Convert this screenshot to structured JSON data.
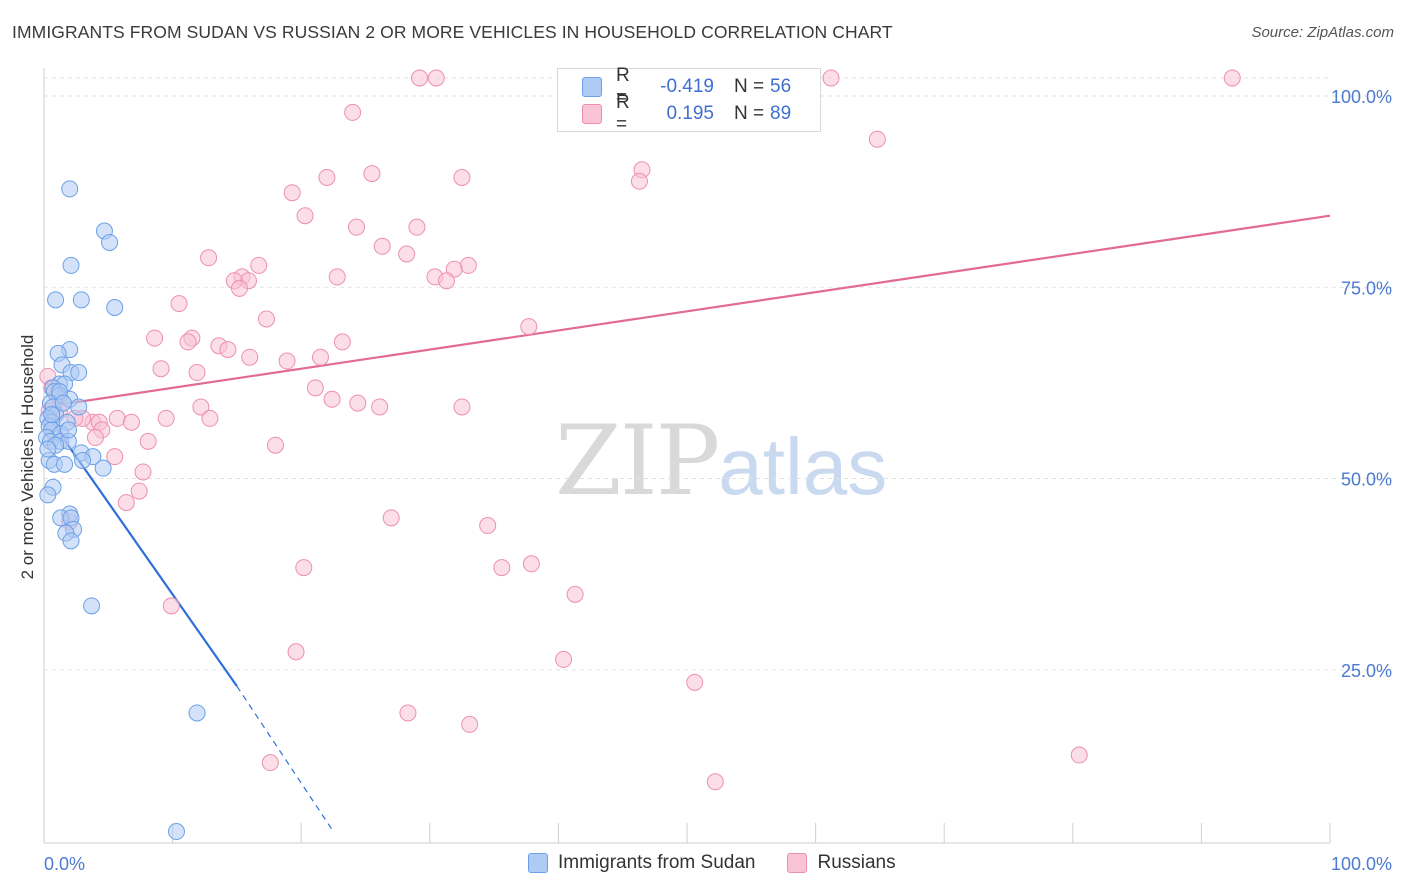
{
  "title": "IMMIGRANTS FROM SUDAN VS RUSSIAN 2 OR MORE VEHICLES IN HOUSEHOLD CORRELATION CHART",
  "source": "Source: ZipAtlas.com",
  "watermark": {
    "zip": "ZIP",
    "atlas": "atlas"
  },
  "colors": {
    "blue": "#6aa0e8",
    "blue_fill": "#aecbf3",
    "blue_line": "#2f6fd8",
    "pink": "#ee8fb0",
    "pink_fill": "#f8c3d5",
    "pink_line": "#e36a96",
    "tick_text": "#4a7bd0"
  },
  "stats": [
    {
      "r_label": "R =",
      "r_value": "-0.419",
      "n_label": "N =",
      "n_value": "56"
    },
    {
      "r_label": "R =",
      "r_value": "0.195",
      "n_label": "N =",
      "n_value": "89"
    }
  ],
  "legend": [
    {
      "label": "Immigrants from Sudan"
    },
    {
      "label": "Russians"
    }
  ],
  "chart_data": {
    "type": "scatter",
    "title": "IMMIGRANTS FROM SUDAN VS RUSSIAN 2 OR MORE VEHICLES IN HOUSEHOLD CORRELATION CHART",
    "xlabel": "",
    "ylabel": "2 or more Vehicles in Household",
    "xlim": [
      0,
      100
    ],
    "ylim": [
      0,
      100
    ],
    "x_tick_labels": [
      "0.0%",
      "100.0%"
    ],
    "y_ticks": [
      25,
      50,
      75,
      100
    ],
    "y_tick_labels": [
      "25.0%",
      "50.0%",
      "75.0%",
      "100.0%"
    ],
    "grid": true,
    "series": [
      {
        "name": "Immigrants from Sudan",
        "trend": {
          "x0": 0,
          "y0": 56.5,
          "x1": 15,
          "y1": 20.5,
          "dash_to_x": 22.5,
          "dash_to_y": 1.5
        },
        "points": [
          [
            2.0,
            85.5
          ],
          [
            4.7,
            80.0
          ],
          [
            5.1,
            78.5
          ],
          [
            2.1,
            75.5
          ],
          [
            0.9,
            71.0
          ],
          [
            2.9,
            71.0
          ],
          [
            5.5,
            70.0
          ],
          [
            2.0,
            64.5
          ],
          [
            1.1,
            64.0
          ],
          [
            1.4,
            62.5
          ],
          [
            2.1,
            61.5
          ],
          [
            2.7,
            61.5
          ],
          [
            1.2,
            60.0
          ],
          [
            1.6,
            60.0
          ],
          [
            0.7,
            59.5
          ],
          [
            0.8,
            59.0
          ],
          [
            1.2,
            58.5
          ],
          [
            2.0,
            58.0
          ],
          [
            0.5,
            57.5
          ],
          [
            0.7,
            57.0
          ],
          [
            2.7,
            57.0
          ],
          [
            0.9,
            56.0
          ],
          [
            0.3,
            55.5
          ],
          [
            0.6,
            55.0
          ],
          [
            1.8,
            55.0
          ],
          [
            0.4,
            54.5
          ],
          [
            0.6,
            54.0
          ],
          [
            1.3,
            53.5
          ],
          [
            0.2,
            53.0
          ],
          [
            0.5,
            52.5
          ],
          [
            1.3,
            52.5
          ],
          [
            1.9,
            52.5
          ],
          [
            0.9,
            52.0
          ],
          [
            2.9,
            51.0
          ],
          [
            3.8,
            50.5
          ],
          [
            3.0,
            50.0
          ],
          [
            0.4,
            50.0
          ],
          [
            0.8,
            49.5
          ],
          [
            1.6,
            49.5
          ],
          [
            4.6,
            49.0
          ],
          [
            0.7,
            46.5
          ],
          [
            0.3,
            45.5
          ],
          [
            2.0,
            43.0
          ],
          [
            1.3,
            42.5
          ],
          [
            2.1,
            42.5
          ],
          [
            2.3,
            41.0
          ],
          [
            1.7,
            40.5
          ],
          [
            2.1,
            39.5
          ],
          [
            3.7,
            31.0
          ],
          [
            11.9,
            17.0
          ],
          [
            10.3,
            1.5
          ],
          [
            1.2,
            59.0
          ],
          [
            0.6,
            56.0
          ],
          [
            1.5,
            57.5
          ],
          [
            0.3,
            51.5
          ],
          [
            1.9,
            54.0
          ]
        ]
      },
      {
        "name": "Russians",
        "trend": {
          "x0": 0,
          "y0": 57.0,
          "x1": 100,
          "y1": 82.0
        },
        "points": [
          [
            29.2,
            100.0
          ],
          [
            30.5,
            100.0
          ],
          [
            47.3,
            100.0
          ],
          [
            50.0,
            100.0
          ],
          [
            61.2,
            100.0
          ],
          [
            92.4,
            100.0
          ],
          [
            24.0,
            95.5
          ],
          [
            64.8,
            92.0
          ],
          [
            46.5,
            88.0
          ],
          [
            25.5,
            87.5
          ],
          [
            32.5,
            87.0
          ],
          [
            22.0,
            87.0
          ],
          [
            46.3,
            86.5
          ],
          [
            19.3,
            85.0
          ],
          [
            20.3,
            82.0
          ],
          [
            24.3,
            80.5
          ],
          [
            29.0,
            80.5
          ],
          [
            26.3,
            78.0
          ],
          [
            28.2,
            77.0
          ],
          [
            12.8,
            76.5
          ],
          [
            16.7,
            75.5
          ],
          [
            33.0,
            75.5
          ],
          [
            31.9,
            75.0
          ],
          [
            22.8,
            74.0
          ],
          [
            15.4,
            74.0
          ],
          [
            30.4,
            74.0
          ],
          [
            15.9,
            73.5
          ],
          [
            14.8,
            73.5
          ],
          [
            31.3,
            73.5
          ],
          [
            15.2,
            72.5
          ],
          [
            10.5,
            70.5
          ],
          [
            17.3,
            68.5
          ],
          [
            37.7,
            67.5
          ],
          [
            8.6,
            66.0
          ],
          [
            11.5,
            66.0
          ],
          [
            23.2,
            65.5
          ],
          [
            11.2,
            65.5
          ],
          [
            13.6,
            65.0
          ],
          [
            14.3,
            64.5
          ],
          [
            16.0,
            63.5
          ],
          [
            21.5,
            63.5
          ],
          [
            18.9,
            63.0
          ],
          [
            9.1,
            62.0
          ],
          [
            11.9,
            61.5
          ],
          [
            0.3,
            61.0
          ],
          [
            21.1,
            59.5
          ],
          [
            22.4,
            58.0
          ],
          [
            24.4,
            57.5
          ],
          [
            26.1,
            57.0
          ],
          [
            12.2,
            57.0
          ],
          [
            32.5,
            57.0
          ],
          [
            0.4,
            56.5
          ],
          [
            1.2,
            56.5
          ],
          [
            9.5,
            55.5
          ],
          [
            12.9,
            55.5
          ],
          [
            5.7,
            55.5
          ],
          [
            3.8,
            55.0
          ],
          [
            4.3,
            55.0
          ],
          [
            3.0,
            55.5
          ],
          [
            6.8,
            55.0
          ],
          [
            4.5,
            54.0
          ],
          [
            0.8,
            53.5
          ],
          [
            4.0,
            53.0
          ],
          [
            8.1,
            52.5
          ],
          [
            18.0,
            52.0
          ],
          [
            5.5,
            50.5
          ],
          [
            7.7,
            48.5
          ],
          [
            7.4,
            46.0
          ],
          [
            6.4,
            44.5
          ],
          [
            27.0,
            42.5
          ],
          [
            34.5,
            41.5
          ],
          [
            2.0,
            42.0
          ],
          [
            35.6,
            36.0
          ],
          [
            37.9,
            36.5
          ],
          [
            20.2,
            36.0
          ],
          [
            41.3,
            32.5
          ],
          [
            9.9,
            31.0
          ],
          [
            19.6,
            25.0
          ],
          [
            40.4,
            24.0
          ],
          [
            50.6,
            21.0
          ],
          [
            28.3,
            17.0
          ],
          [
            33.1,
            15.5
          ],
          [
            17.6,
            10.5
          ],
          [
            80.5,
            11.5
          ],
          [
            52.2,
            8.0
          ],
          [
            1.0,
            58.5
          ],
          [
            0.6,
            59.5
          ],
          [
            1.5,
            57.5
          ],
          [
            2.4,
            55.5
          ]
        ]
      }
    ]
  }
}
